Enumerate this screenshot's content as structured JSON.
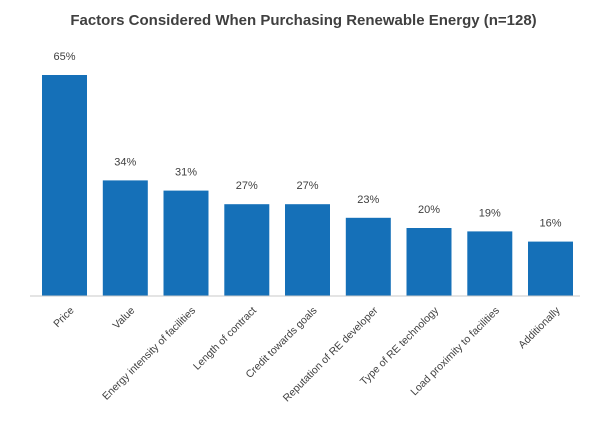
{
  "chart_data": {
    "type": "bar",
    "title": "Factors Considered When Purchasing Renewable Energy (n=128)",
    "categories": [
      "Price",
      "Value",
      "Energy intensity of facilities",
      "Length of contract",
      "Credit towards goals",
      "Reputation of RE developer",
      "Type of RE technology",
      "Load proximity to facilities",
      "Additionally"
    ],
    "values": [
      65,
      34,
      31,
      27,
      27,
      23,
      20,
      19,
      16
    ],
    "value_labels": [
      "65%",
      "34%",
      "31%",
      "27%",
      "27%",
      "23%",
      "20%",
      "19%",
      "16%"
    ],
    "xlabel": "",
    "ylabel": "",
    "ylim": [
      0,
      65
    ],
    "grid": false,
    "legend": "none",
    "bar_color": "#1570b8"
  }
}
